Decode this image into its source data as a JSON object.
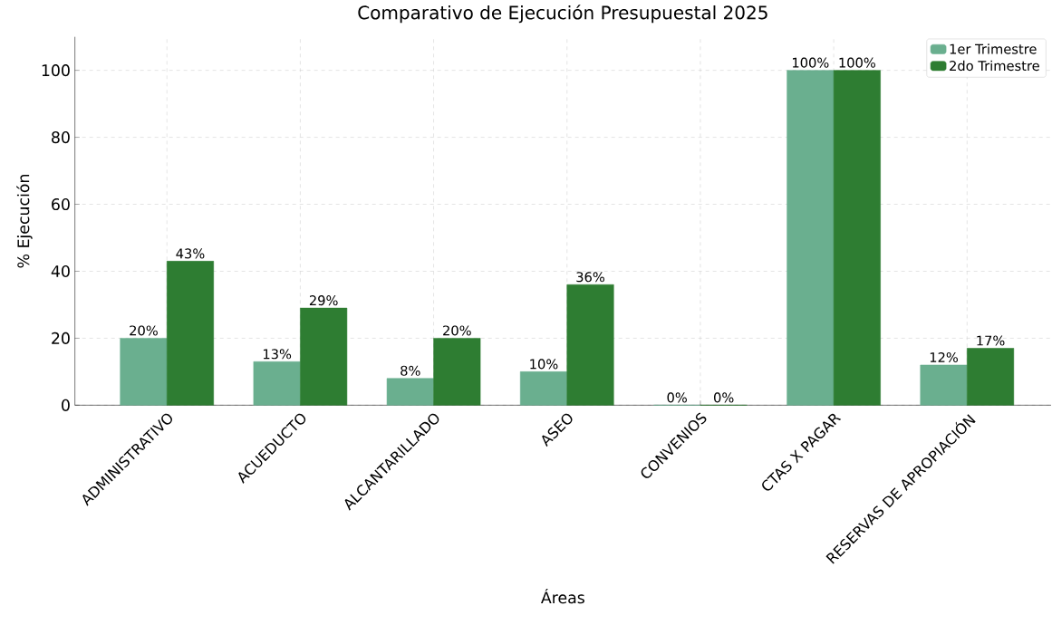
{
  "chart_data": {
    "type": "bar",
    "title": "Comparativo de Ejecución Presupuestal 2025",
    "xlabel": "Áreas",
    "ylabel": "% Ejecución",
    "categories": [
      "ADMINISTRATIVO",
      "ACUEDUCTO",
      "ALCANTARILLADO",
      "ASEO",
      "CONVENIOS",
      "CTAS X PAGAR",
      "RESERVAS DE APROPIACIÓN"
    ],
    "series": [
      {
        "name": "1er Trimestre",
        "color": "#6aaf8f",
        "values": [
          20,
          13,
          8,
          10,
          0,
          100,
          12
        ],
        "value_labels": [
          "20%",
          "13%",
          "8%",
          "10%",
          "0%",
          "100%",
          "12%"
        ]
      },
      {
        "name": "2do Trimestre",
        "color": "#2e7d32",
        "values": [
          43,
          29,
          20,
          36,
          0,
          100,
          17
        ],
        "value_labels": [
          "43%",
          "29%",
          "20%",
          "36%",
          "0%",
          "100%",
          "17%"
        ]
      }
    ],
    "ylim": [
      0,
      110
    ],
    "yticks": [
      0,
      20,
      40,
      60,
      80,
      100
    ],
    "grid": true,
    "legend": "top right"
  }
}
